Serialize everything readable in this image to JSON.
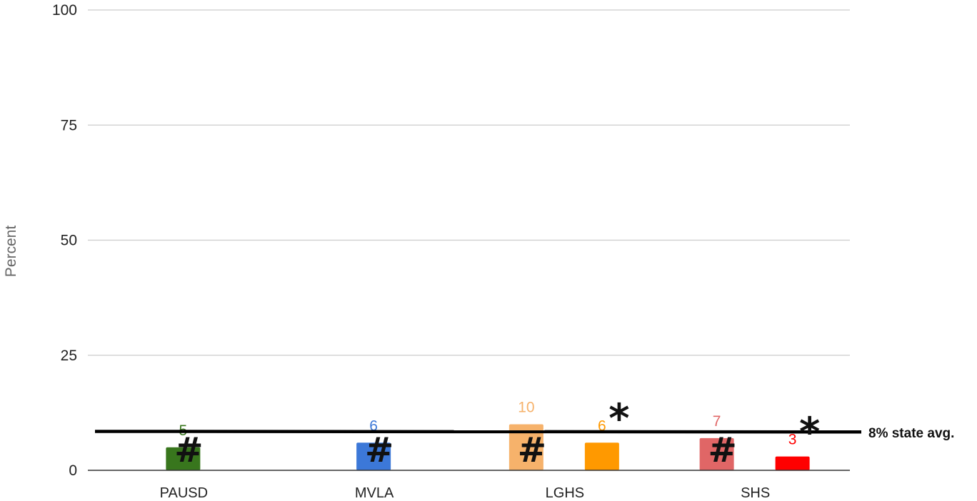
{
  "chart_data": {
    "type": "bar",
    "ylabel": "Percent",
    "xlabel": "",
    "ylim": [
      0,
      100
    ],
    "yticks": [
      0,
      25,
      50,
      75,
      100
    ],
    "grid": true,
    "categories": [
      "PAUSD",
      "MVLA",
      "LGHS",
      "SHS"
    ],
    "bars": [
      {
        "category": "PAUSD",
        "value": 5,
        "label": "5",
        "color": "#38761d",
        "marker": "#"
      },
      {
        "category": "MVLA",
        "value": 6,
        "label": "6",
        "color": "#3c78d8",
        "marker": "#"
      },
      {
        "category": "LGHS",
        "value": 10,
        "label": "10",
        "color": "#f6b26b",
        "marker": "#"
      },
      {
        "category": "LGHS",
        "value": 6,
        "label": "6",
        "color": "#ff9900",
        "marker": "*"
      },
      {
        "category": "SHS",
        "value": 7,
        "label": "7",
        "color": "#e06666",
        "marker": "#"
      },
      {
        "category": "SHS",
        "value": 3,
        "label": "3",
        "color": "#ff0000",
        "marker": "*"
      }
    ],
    "reference_line": {
      "value": 8.3,
      "label": "8% state avg.",
      "color": "#000000"
    }
  }
}
